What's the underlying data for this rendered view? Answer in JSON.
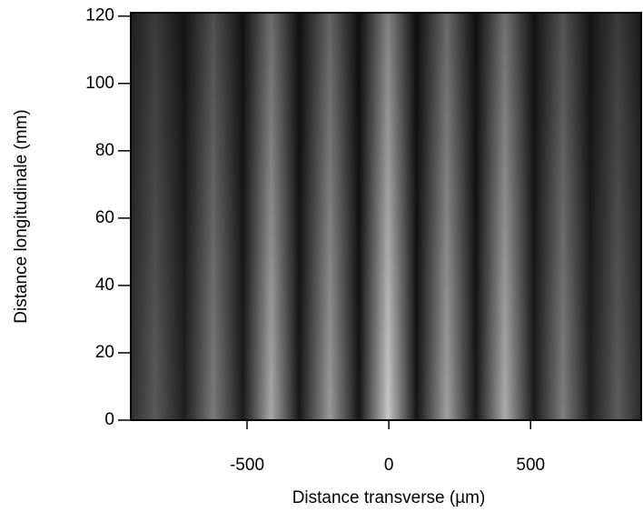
{
  "chart_data": {
    "type": "image",
    "xlabel": "Distance transverse (µm)",
    "ylabel": "Distance longitudinale (mm)",
    "xlim": [
      -910,
      890
    ],
    "ylim": [
      0,
      121
    ],
    "xticks": [
      -500,
      0,
      500
    ],
    "yticks": [
      0,
      20,
      40,
      60,
      80,
      100,
      120
    ]
  }
}
